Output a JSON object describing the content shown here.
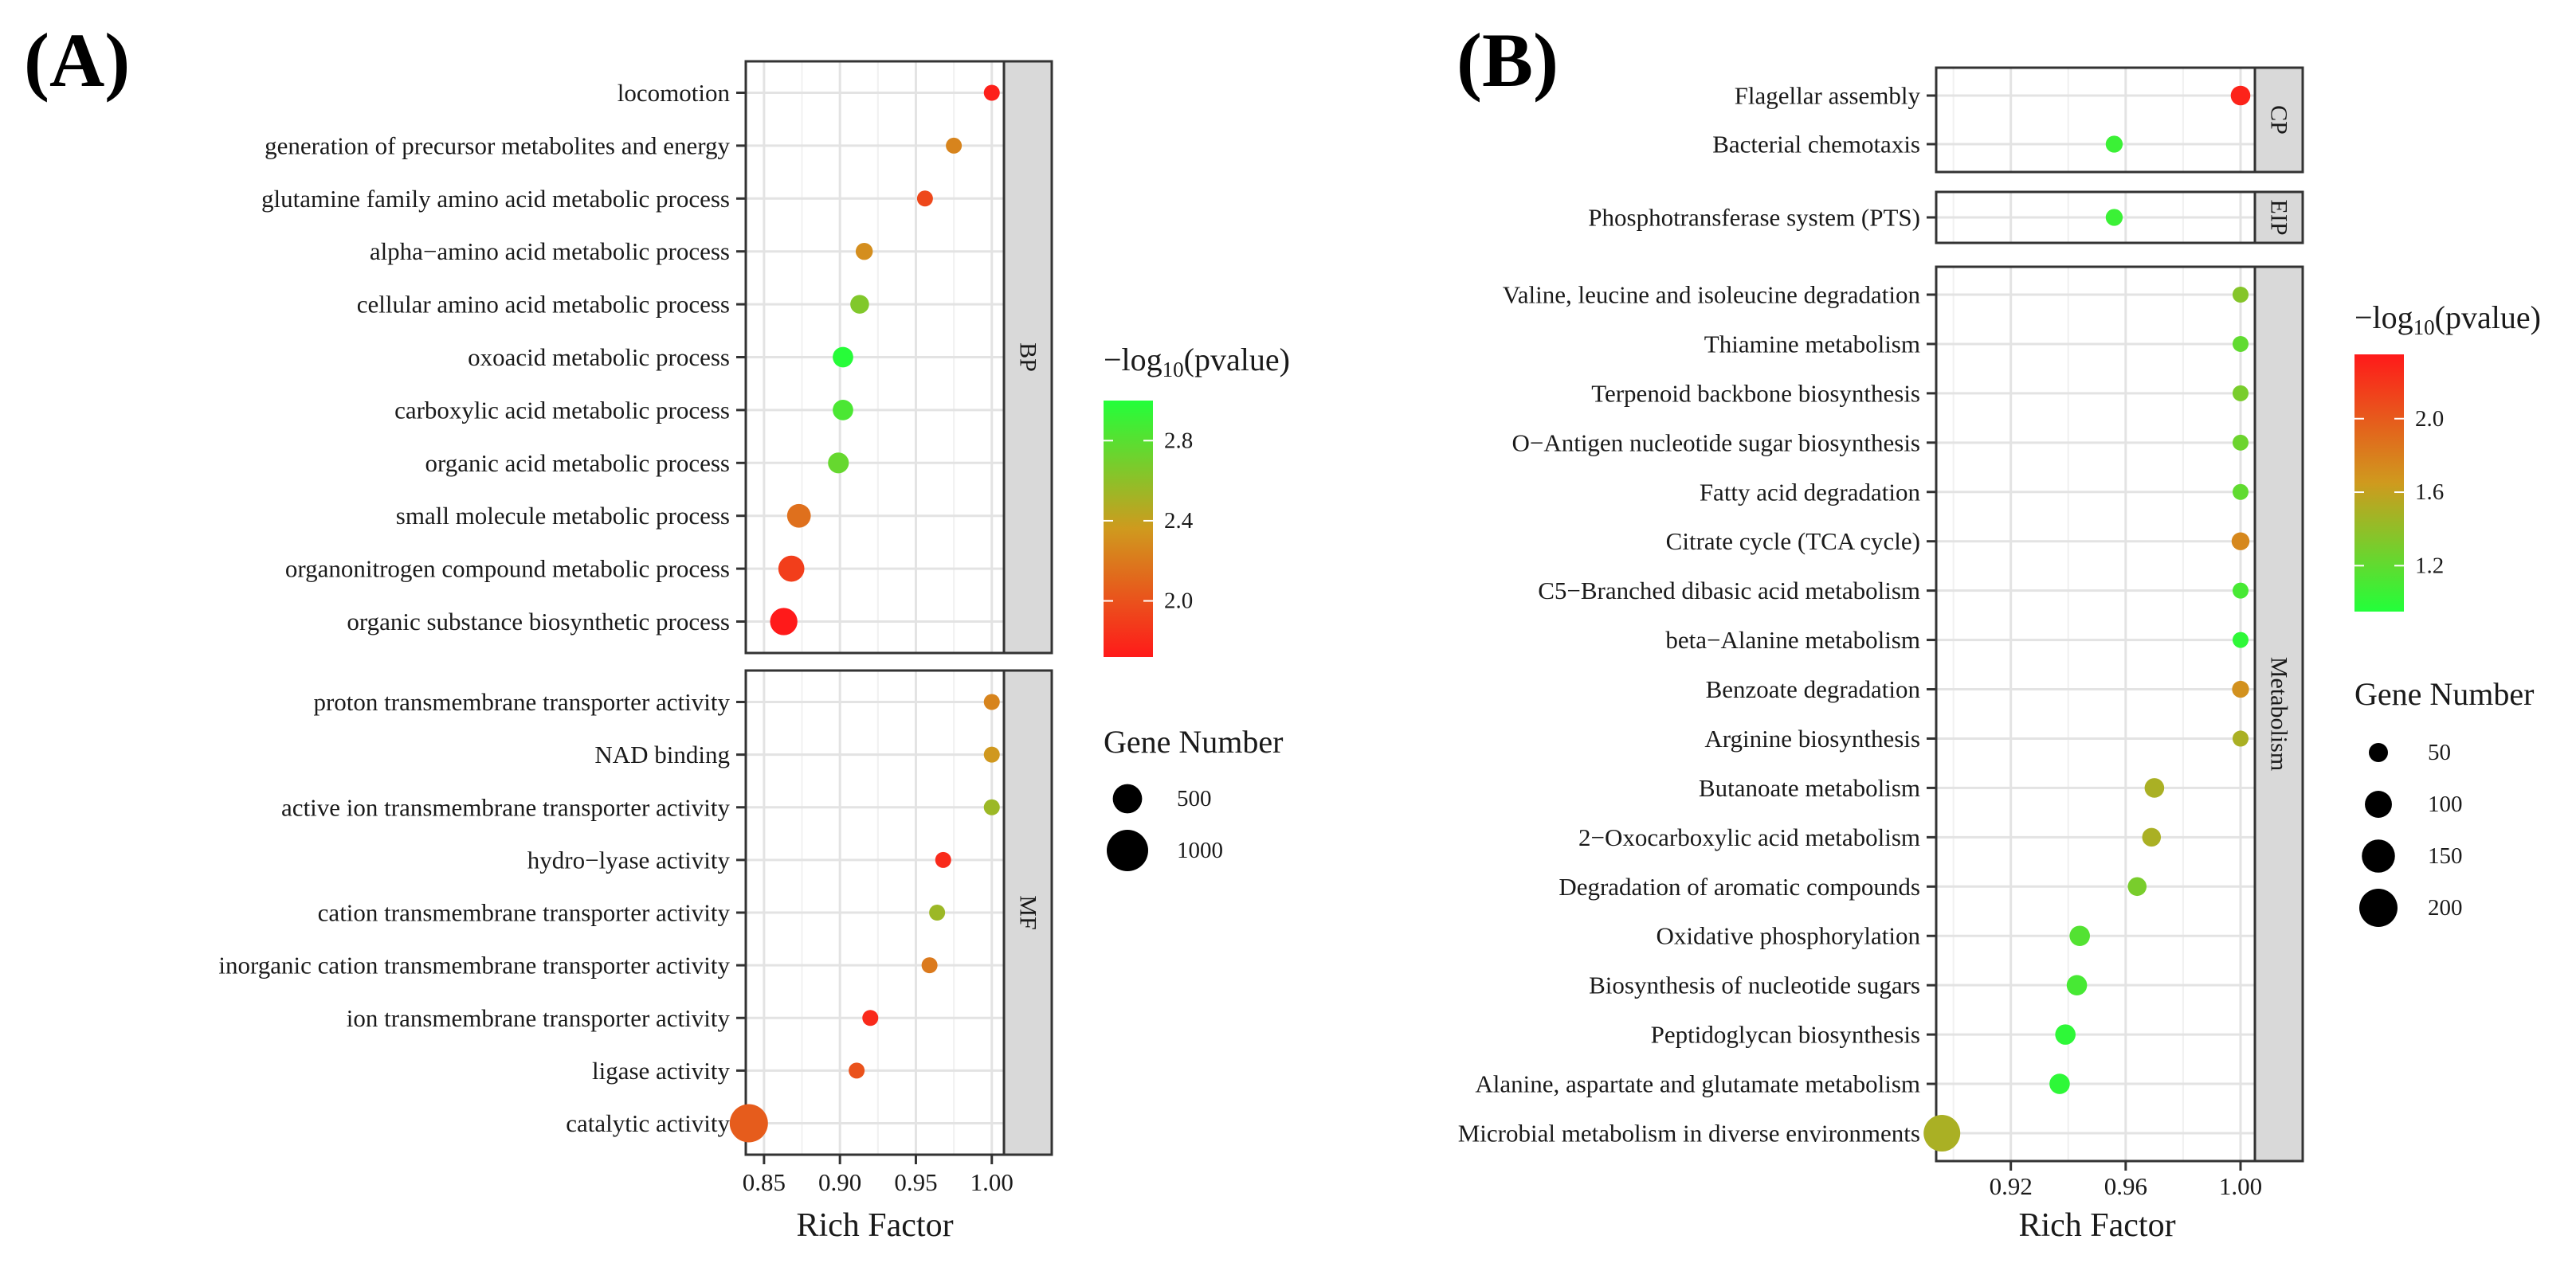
{
  "panel_labels": {
    "a": "(A)",
    "b": "(B)"
  },
  "chart_data": [
    {
      "panel": "(A)",
      "type": "scatter",
      "xlabel": "Rich Factor",
      "xlim": [
        0.838,
        1.008
      ],
      "xticks": [
        0.85,
        0.9,
        0.95,
        1.0
      ],
      "xtick_labels": [
        "0.85",
        "0.90",
        "0.95",
        "1.00"
      ],
      "facets": [
        {
          "name": "BP",
          "terms": [
            {
              "term": "locomotion",
              "rich": 1.0,
              "logp": 1.75,
              "genes": 40
            },
            {
              "term": "generation of precursor metabolites and energy",
              "rich": 0.975,
              "logp": 2.25,
              "genes": 150
            },
            {
              "term": "glutamine family amino acid metabolic process",
              "rich": 0.956,
              "logp": 1.95,
              "genes": 150
            },
            {
              "term": "alpha−amino acid metabolic process",
              "rich": 0.916,
              "logp": 2.3,
              "genes": 250
            },
            {
              "term": "cellular amino acid metabolic process",
              "rich": 0.913,
              "logp": 2.65,
              "genes": 300
            },
            {
              "term": "oxoacid metabolic process",
              "rich": 0.902,
              "logp": 2.98,
              "genes": 360
            },
            {
              "term": "carboxylic acid metabolic process",
              "rich": 0.902,
              "logp": 2.85,
              "genes": 360
            },
            {
              "term": "organic acid metabolic process",
              "rich": 0.899,
              "logp": 2.75,
              "genes": 370
            },
            {
              "term": "small molecule metabolic process",
              "rich": 0.873,
              "logp": 2.15,
              "genes": 480
            },
            {
              "term": "organonitrogen compound metabolic process",
              "rich": 0.868,
              "logp": 1.9,
              "genes": 580
            },
            {
              "term": "organic substance biosynthetic process",
              "rich": 0.863,
              "logp": 1.72,
              "genes": 640
            }
          ]
        },
        {
          "name": "MF",
          "terms": [
            {
              "term": "proton transmembrane transporter activity",
              "rich": 1.0,
              "logp": 2.25,
              "genes": 80
            },
            {
              "term": "NAD binding",
              "rich": 1.0,
              "logp": 2.35,
              "genes": 80
            },
            {
              "term": "active ion transmembrane transporter activity",
              "rich": 1.0,
              "logp": 2.55,
              "genes": 80
            },
            {
              "term": "hydro−lyase activity",
              "rich": 0.968,
              "logp": 1.8,
              "genes": 80
            },
            {
              "term": "cation transmembrane transporter activity",
              "rich": 0.964,
              "logp": 2.55,
              "genes": 110
            },
            {
              "term": "inorganic cation transmembrane transporter activity",
              "rich": 0.959,
              "logp": 2.2,
              "genes": 120
            },
            {
              "term": "ion transmembrane transporter activity",
              "rich": 0.92,
              "logp": 1.8,
              "genes": 140
            },
            {
              "term": "ligase activity",
              "rich": 0.911,
              "logp": 2.0,
              "genes": 150
            },
            {
              "term": "catalytic activity",
              "rich": 0.84,
              "logp": 2.05,
              "genes": 1250
            }
          ]
        }
      ],
      "color_legend": {
        "title_prefix": "−log",
        "title_sub": "10",
        "title_suffix": "(pvalue)",
        "min": 1.72,
        "max": 3.0,
        "low_color": "#ff1a1a",
        "mid_color": "#cf9a1e",
        "high_color": "#22ff3a",
        "ticks": [
          2.0,
          2.4,
          2.8
        ],
        "tick_labels": [
          "2.0",
          "2.4",
          "2.8"
        ]
      },
      "size_legend": {
        "title": "Gene Number",
        "values": [
          500,
          1000
        ],
        "labels": [
          "500",
          "1000"
        ]
      }
    },
    {
      "panel": "(B)",
      "type": "scatter",
      "xlabel": "Rich Factor",
      "xlim": [
        0.894,
        1.005
      ],
      "xticks": [
        0.92,
        0.96,
        1.0
      ],
      "xtick_labels": [
        "0.92",
        "0.96",
        "1.00"
      ],
      "facets": [
        {
          "name": "CP",
          "terms": [
            {
              "term": "Flagellar assembly",
              "rich": 1.0,
              "logp": 2.3,
              "genes": 60
            },
            {
              "term": "Bacterial chemotaxis",
              "rich": 0.956,
              "logp": 1.05,
              "genes": 45
            }
          ]
        },
        {
          "name": "EIP",
          "terms": [
            {
              "term": "Phosphotransferase system (PTS)",
              "rich": 0.956,
              "logp": 1.05,
              "genes": 45
            }
          ]
        },
        {
          "name": "Metabolism",
          "terms": [
            {
              "term": "Valine, leucine and isoleucine degradation",
              "rich": 1.0,
              "logp": 1.35,
              "genes": 40
            },
            {
              "term": "Thiamine metabolism",
              "rich": 1.0,
              "logp": 1.2,
              "genes": 35
            },
            {
              "term": "Terpenoid backbone biosynthesis",
              "rich": 1.0,
              "logp": 1.3,
              "genes": 35
            },
            {
              "term": "O−Antigen nucleotide sugar biosynthesis",
              "rich": 1.0,
              "logp": 1.25,
              "genes": 35
            },
            {
              "term": "Fatty acid degradation",
              "rich": 1.0,
              "logp": 1.2,
              "genes": 35
            },
            {
              "term": "Citrate cycle (TCA cycle)",
              "rich": 1.0,
              "logp": 1.75,
              "genes": 50
            },
            {
              "term": "C5−Branched dibasic acid metabolism",
              "rich": 1.0,
              "logp": 1.1,
              "genes": 30
            },
            {
              "term": "beta−Alanine metabolism",
              "rich": 1.0,
              "logp": 1.0,
              "genes": 25
            },
            {
              "term": "Benzoate degradation",
              "rich": 1.0,
              "logp": 1.7,
              "genes": 45
            },
            {
              "term": "Arginine biosynthesis",
              "rich": 1.0,
              "logp": 1.5,
              "genes": 40
            },
            {
              "term": "Butanoate metabolism",
              "rich": 0.97,
              "logp": 1.5,
              "genes": 60
            },
            {
              "term": "2−Oxocarboxylic acid metabolism",
              "rich": 0.969,
              "logp": 1.5,
              "genes": 55
            },
            {
              "term": "Degradation of aromatic compounds",
              "rich": 0.964,
              "logp": 1.3,
              "genes": 55
            },
            {
              "term": "Oxidative phosphorylation",
              "rich": 0.944,
              "logp": 1.15,
              "genes": 65
            },
            {
              "term": "Biosynthesis of nucleotide sugars",
              "rich": 0.943,
              "logp": 1.1,
              "genes": 65
            },
            {
              "term": "Peptidoglycan biosynthesis",
              "rich": 0.939,
              "logp": 1.0,
              "genes": 65
            },
            {
              "term": "Alanine, aspartate and glutamate metabolism",
              "rich": 0.937,
              "logp": 1.0,
              "genes": 65
            },
            {
              "term": "Microbial metabolism in diverse environments",
              "rich": 0.896,
              "logp": 1.5,
              "genes": 210
            }
          ]
        }
      ],
      "color_legend": {
        "title_prefix": "−log",
        "title_sub": "10",
        "title_suffix": "(pvalue)",
        "min": 0.95,
        "max": 2.35,
        "low_color": "#22ff3a",
        "mid_color": "#cf9a1e",
        "high_color": "#ff1a1a",
        "ticks": [
          1.2,
          1.6,
          2.0
        ],
        "tick_labels": [
          "1.2",
          "1.6",
          "2.0"
        ]
      },
      "size_legend": {
        "title": "Gene Number",
        "values": [
          50,
          100,
          150,
          200
        ],
        "labels": [
          "50",
          "100",
          "150",
          "200"
        ]
      }
    }
  ]
}
